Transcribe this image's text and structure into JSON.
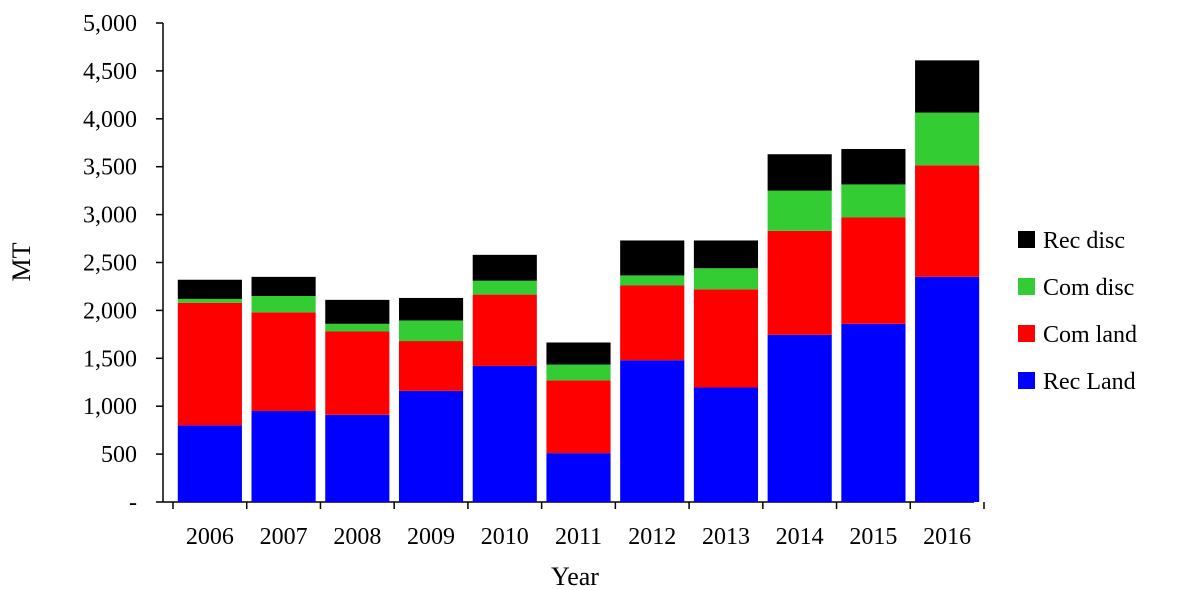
{
  "chart_data": {
    "type": "bar",
    "stacked": true,
    "title": "",
    "xlabel": "Year",
    "ylabel": "MT",
    "ylim": [
      0,
      5000
    ],
    "yticks": [
      0,
      500,
      1000,
      1500,
      2000,
      2500,
      3000,
      3500,
      4000,
      4500,
      5000
    ],
    "ytick_labels": [
      "-",
      "500",
      "1,000",
      "1,500",
      "2,000",
      "2,500",
      "3,000",
      "3,500",
      "4,000",
      "4,500",
      "5,000"
    ],
    "categories": [
      "2006",
      "2007",
      "2008",
      "2009",
      "2010",
      "2011",
      "2012",
      "2013",
      "2014",
      "2015",
      "2016"
    ],
    "legend_position": "right",
    "grid": false,
    "series": [
      {
        "name": "Rec Land",
        "color": "#0000ff",
        "values": [
          800,
          950,
          910,
          1160,
          1420,
          510,
          1480,
          1195,
          1745,
          1860,
          2350
        ]
      },
      {
        "name": "Com land",
        "color": "#ff0000",
        "values": [
          1280,
          1030,
          870,
          520,
          745,
          760,
          780,
          1025,
          1085,
          1110,
          1165
        ]
      },
      {
        "name": "Com disc",
        "color": "#33cc33",
        "values": [
          40,
          170,
          80,
          215,
          145,
          165,
          105,
          220,
          420,
          345,
          550
        ]
      },
      {
        "name": "Rec disc",
        "color": "#000000",
        "values": [
          200,
          200,
          250,
          235,
          270,
          230,
          365,
          290,
          380,
          370,
          545
        ]
      }
    ],
    "legend_order": [
      "Rec disc",
      "Com disc",
      "Com land",
      "Rec Land"
    ]
  }
}
